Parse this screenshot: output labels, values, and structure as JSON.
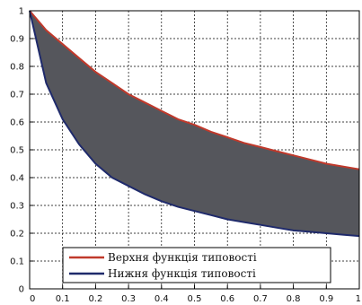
{
  "chart_data": {
    "type": "area",
    "title": "",
    "xlabel": "",
    "ylabel": "",
    "xlim": [
      0,
      1
    ],
    "ylim": [
      0,
      1
    ],
    "grid": true,
    "legend_position": "bottom-left",
    "x_ticks": [
      "0",
      "0.1",
      "0.2",
      "0.3",
      "0.4",
      "0.5",
      "0.6",
      "0.7",
      "0.8",
      "0.9",
      "1"
    ],
    "y_ticks": [
      "0",
      "0.1",
      "0.2",
      "0.3",
      "0.4",
      "0.5",
      "0.6",
      "0.7",
      "0.8",
      "0.9",
      "1"
    ],
    "x": [
      0,
      0.05,
      0.1,
      0.15,
      0.2,
      0.25,
      0.3,
      0.35,
      0.4,
      0.45,
      0.5,
      0.55,
      0.6,
      0.65,
      0.7,
      0.75,
      0.8,
      0.85,
      0.9,
      0.95,
      1.0
    ],
    "series": [
      {
        "name": "Верхня функція типовості",
        "color": "#c0392b",
        "values": [
          1.0,
          0.93,
          0.88,
          0.83,
          0.78,
          0.74,
          0.7,
          0.67,
          0.64,
          0.61,
          0.59,
          0.565,
          0.545,
          0.525,
          0.51,
          0.495,
          0.48,
          0.465,
          0.45,
          0.44,
          0.43
        ]
      },
      {
        "name": "Нижня функція типовості",
        "color": "#1f2a6b",
        "values": [
          1.0,
          0.74,
          0.61,
          0.52,
          0.45,
          0.4,
          0.37,
          0.34,
          0.315,
          0.295,
          0.28,
          0.265,
          0.25,
          0.24,
          0.23,
          0.22,
          0.21,
          0.205,
          0.2,
          0.195,
          0.19
        ]
      }
    ],
    "fill_color": "#55565c"
  }
}
